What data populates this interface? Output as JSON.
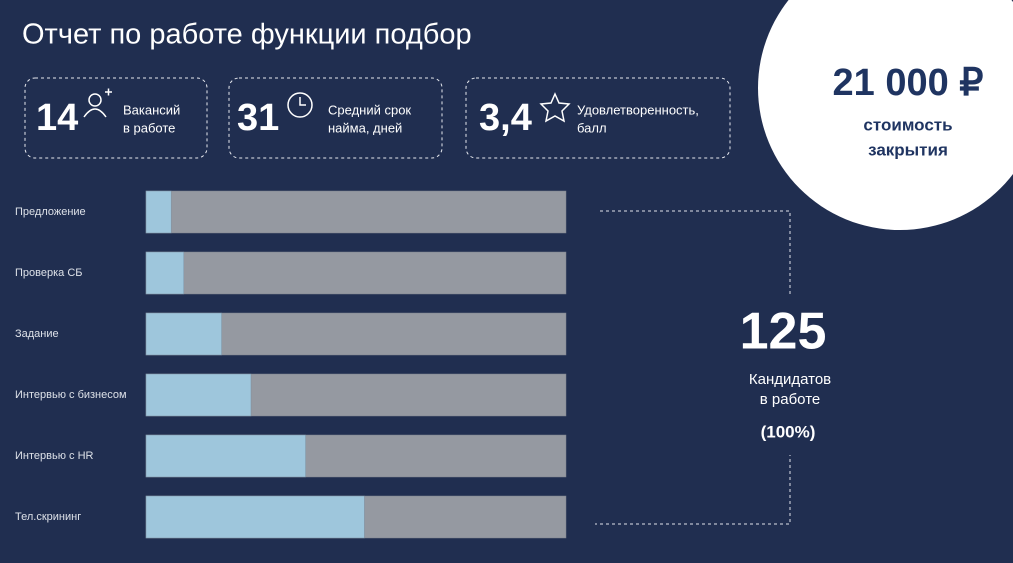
{
  "header": {
    "title": "Отчет по работе функции подбор"
  },
  "kpis": [
    {
      "value": "14",
      "label": [
        "Вакансий",
        "в работе"
      ]
    },
    {
      "value": "31",
      "label": [
        "Средний срок",
        "найма, дней"
      ]
    },
    {
      "value": "3,4",
      "label": [
        "Удовлетворенность,",
        "балл"
      ]
    }
  ],
  "cost": {
    "value": "21 000 ₽",
    "label": [
      "стоимость",
      "закрытия"
    ]
  },
  "candidates": {
    "value": "125",
    "label": [
      "Кандидатов",
      "в работе"
    ],
    "share": "(100%)"
  },
  "chart_data": {
    "type": "bar",
    "orientation": "horizontal",
    "categories": [
      "Предложение",
      "Проверка СБ",
      "Задание",
      "Интервью с бизнесом",
      "Интервью с HR",
      "Тел.скрининг"
    ],
    "values": [
      6,
      9,
      18,
      25,
      38,
      52
    ],
    "xlim": [
      0,
      100
    ],
    "color": "#9ec6dc",
    "track_color": "#9599a1"
  }
}
